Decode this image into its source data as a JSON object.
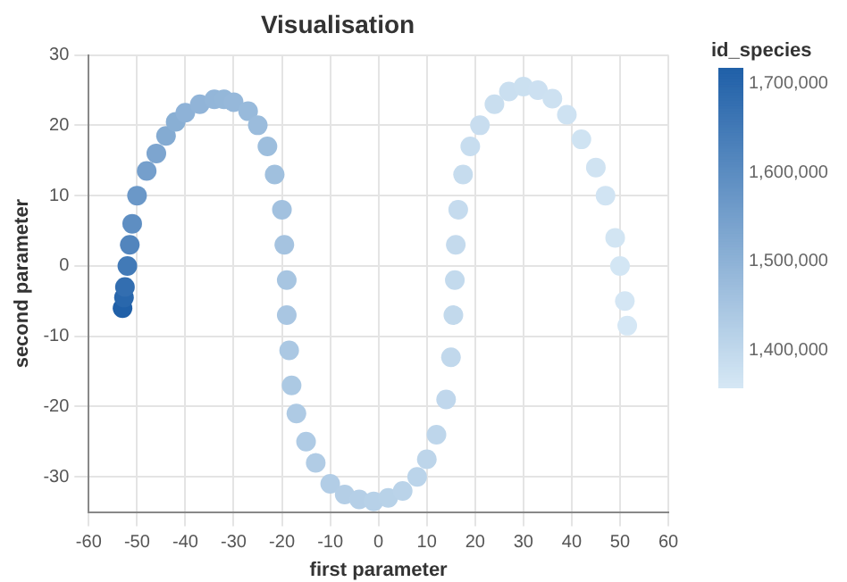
{
  "chart_data": {
    "type": "scatter",
    "title": "Visualisation",
    "xlabel": "first parameter",
    "ylabel": "second parameter",
    "clabel": "id_species",
    "x": [
      -53,
      -52.7,
      -52.5,
      -52,
      -51.5,
      -51,
      -50,
      -48,
      -46,
      -44,
      -42,
      -40,
      -37,
      -34,
      -32,
      -30,
      -27,
      -25,
      -23,
      -21.5,
      -20,
      -19.5,
      -19,
      -19,
      -18.5,
      -18,
      -17,
      -15,
      -13,
      -10,
      -7,
      -4,
      -1,
      2,
      5,
      8,
      10,
      12,
      14,
      15,
      15.5,
      15.8,
      16,
      16.5,
      17.5,
      19,
      21,
      24,
      27,
      30,
      33,
      36,
      39,
      42,
      45,
      47,
      49,
      50,
      51,
      51.5
    ],
    "values": [
      -6,
      -4.5,
      -3,
      0,
      3,
      6,
      10,
      13.5,
      16,
      18.5,
      20.5,
      21.8,
      23,
      23.7,
      23.7,
      23.3,
      22,
      20,
      17,
      13,
      8,
      3,
      -2,
      -7,
      -12,
      -17,
      -21,
      -25,
      -28,
      -31,
      -32.5,
      -33.2,
      -33.5,
      -33,
      -32,
      -30,
      -27.5,
      -24,
      -19,
      -13,
      -7,
      -2,
      3,
      8,
      13,
      17,
      20,
      23,
      24.8,
      25.5,
      25,
      23.8,
      21.5,
      18,
      14,
      10,
      4,
      0,
      -5,
      -8.5
    ],
    "cvalues": [
      1718000,
      1700000,
      1680000,
      1650000,
      1620000,
      1595000,
      1570000,
      1550000,
      1535000,
      1520000,
      1510000,
      1500000,
      1495000,
      1490000,
      1488000,
      1485000,
      1480000,
      1475000,
      1470000,
      1465000,
      1460000,
      1455000,
      1450000,
      1447000,
      1444000,
      1441000,
      1438000,
      1435000,
      1432000,
      1429000,
      1426000,
      1423000,
      1420000,
      1417000,
      1414000,
      1411000,
      1408000,
      1405000,
      1402000,
      1400000,
      1398000,
      1396000,
      1394000,
      1392000,
      1390000,
      1388000,
      1386000,
      1384000,
      1382000,
      1380000,
      1378000,
      1376000,
      1374000,
      1372000,
      1370000,
      1368000,
      1366000,
      1364000,
      1362000,
      1360000
    ],
    "clim": [
      1358000,
      1718000
    ],
    "cticks": [
      {
        "value": 1400000,
        "label": "1,400,000"
      },
      {
        "value": 1500000,
        "label": "1,500,000"
      },
      {
        "value": 1600000,
        "label": "1,600,000"
      },
      {
        "value": 1700000,
        "label": "1,700,000"
      }
    ],
    "xlim": [
      -60,
      60
    ],
    "xticks": [
      -60,
      -50,
      -40,
      -30,
      -20,
      -10,
      0,
      10,
      20,
      30,
      40,
      50,
      60
    ],
    "ylim": [
      -35,
      30
    ],
    "yticks": [
      -30,
      -20,
      -10,
      0,
      10,
      20,
      30
    ],
    "grid": true,
    "marker": "circle"
  }
}
